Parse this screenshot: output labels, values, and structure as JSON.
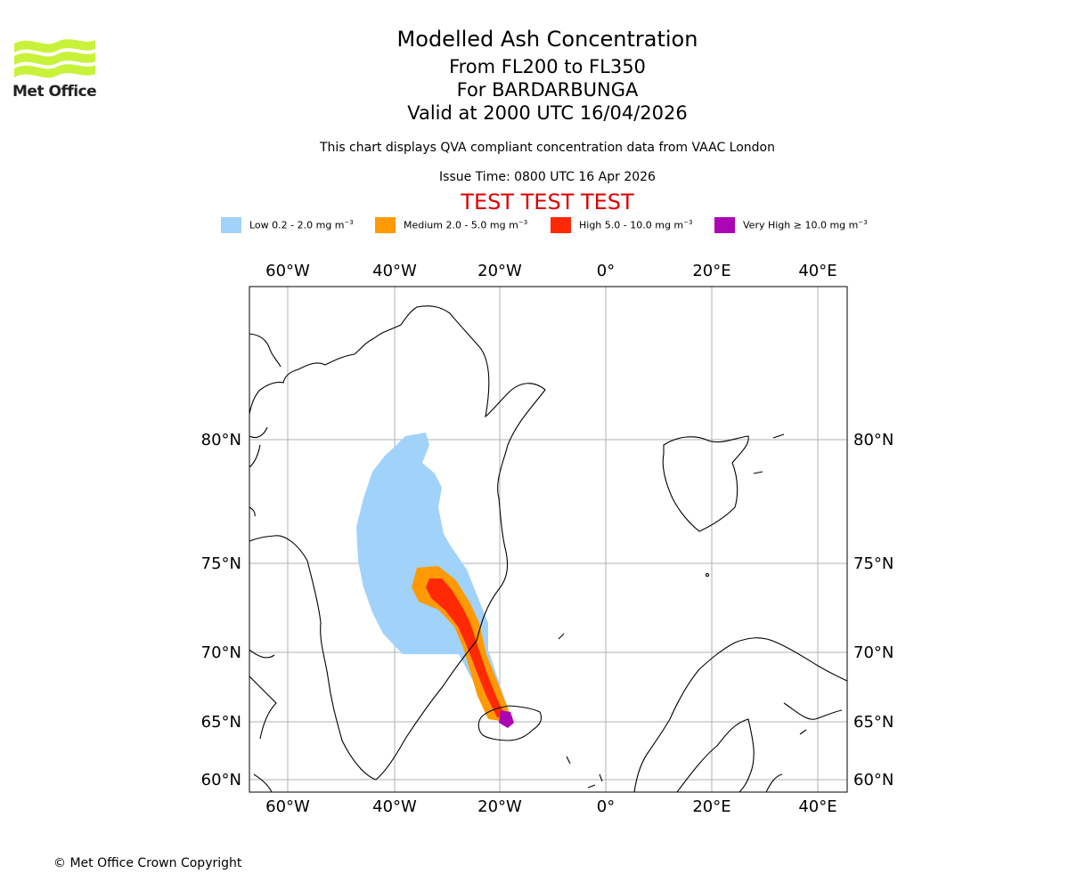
{
  "logo": {
    "name": "Met Office",
    "color": "#c8f23a"
  },
  "header": {
    "title": "Modelled Ash Concentration",
    "levels": "From FL200 to FL350",
    "volcano": "For BARDARBUNGA",
    "valid": "Valid at 2000 UTC 16/04/2026",
    "description": "This chart displays QVA compliant concentration data from VAAC London",
    "issue_time": "Issue Time: 0800 UTC 16 Apr 2026",
    "test_banner": "TEST TEST TEST",
    "test_color": "#dd0000"
  },
  "legend": [
    {
      "label": "Low 0.2 - 2.0 mg m",
      "unit_exp": "−3",
      "color": "#a1d2fa"
    },
    {
      "label": "Medium 2.0 - 5.0 mg m",
      "unit_exp": "−3",
      "color": "#ff9a05"
    },
    {
      "label": "High 5.0 - 10.0 mg m",
      "unit_exp": "−3",
      "color": "#ff2a05"
    },
    {
      "label": "Very High  ≥  10.0 mg m",
      "unit_exp": "−3",
      "color": "#ab05b4"
    }
  ],
  "map": {
    "lon_ticks": [
      "60°W",
      "40°W",
      "20°W",
      "0°",
      "20°E",
      "40°E"
    ],
    "lat_ticks": [
      "80°N",
      "75°N",
      "70°N",
      "65°N",
      "60°N"
    ],
    "grid": true
  },
  "footer": {
    "copyright": "© Met Office Crown Copyright"
  }
}
